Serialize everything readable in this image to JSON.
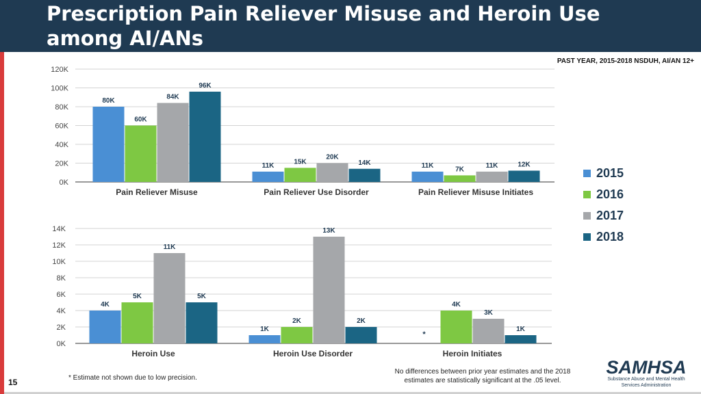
{
  "slide": {
    "title_line1": "Prescription Pain Reliever Misuse and Heroin Use",
    "title_line2": "among AI/ANs",
    "subtitle": "PAST YEAR, 2015-2018 NSDUH, AI/AN 12+",
    "footnote": "* Estimate not shown due to low precision.",
    "significance_line1": "No differences between prior year estimates and the 2018",
    "significance_line2": "estimates are statistically significant at the .05 level.",
    "page_number": "15",
    "logo_text": "SAMHSA",
    "logo_sub_line1": "Substance Abuse and Mental Health",
    "logo_sub_line2": "Services Administration"
  },
  "colors": {
    "header": "#1f3a52",
    "accent": "#d93b3b",
    "series": [
      "#4a8fd4",
      "#7ec843",
      "#a5a7aa",
      "#1b6584"
    ]
  },
  "legend": {
    "items": [
      {
        "label": "2015"
      },
      {
        "label": "2016"
      },
      {
        "label": "2017"
      },
      {
        "label": "2018"
      }
    ]
  },
  "chart_data": [
    {
      "type": "bar",
      "title": "",
      "categories": [
        "Pain Reliever Misuse",
        "Pain Reliever Use Disorder",
        "Pain Reliever Misuse Initiates"
      ],
      "ylim": [
        0,
        120
      ],
      "yticks": [
        0,
        20,
        40,
        60,
        80,
        100,
        120
      ],
      "ytick_labels": [
        "0K",
        "20K",
        "40K",
        "60K",
        "80K",
        "100K",
        "120K"
      ],
      "series": [
        {
          "name": "2015",
          "values": [
            80,
            11,
            11
          ],
          "labels": [
            "80K",
            "11K",
            "11K"
          ]
        },
        {
          "name": "2016",
          "values": [
            60,
            15,
            7
          ],
          "labels": [
            "60K",
            "15K",
            "7K"
          ]
        },
        {
          "name": "2017",
          "values": [
            84,
            20,
            11
          ],
          "labels": [
            "84K",
            "20K",
            "11K"
          ]
        },
        {
          "name": "2018",
          "values": [
            96,
            14,
            12
          ],
          "labels": [
            "96K",
            "14K",
            "12K"
          ]
        }
      ]
    },
    {
      "type": "bar",
      "title": "",
      "categories": [
        "Heroin Use",
        "Heroin Use Disorder",
        "Heroin Initiates"
      ],
      "ylim": [
        0,
        14
      ],
      "yticks": [
        0,
        2,
        4,
        6,
        8,
        10,
        12,
        14
      ],
      "ytick_labels": [
        "0K",
        "2K",
        "4K",
        "6K",
        "8K",
        "10K",
        "12K",
        "14K"
      ],
      "series": [
        {
          "name": "2015",
          "values": [
            4,
            1,
            null
          ],
          "labels": [
            "4K",
            "1K",
            "*"
          ]
        },
        {
          "name": "2016",
          "values": [
            5,
            2,
            4
          ],
          "labels": [
            "5K",
            "2K",
            "4K"
          ]
        },
        {
          "name": "2017",
          "values": [
            11,
            13,
            3
          ],
          "labels": [
            "11K",
            "13K",
            "3K"
          ]
        },
        {
          "name": "2018",
          "values": [
            5,
            2,
            1
          ],
          "labels": [
            "5K",
            "2K",
            "1K"
          ]
        }
      ]
    }
  ]
}
